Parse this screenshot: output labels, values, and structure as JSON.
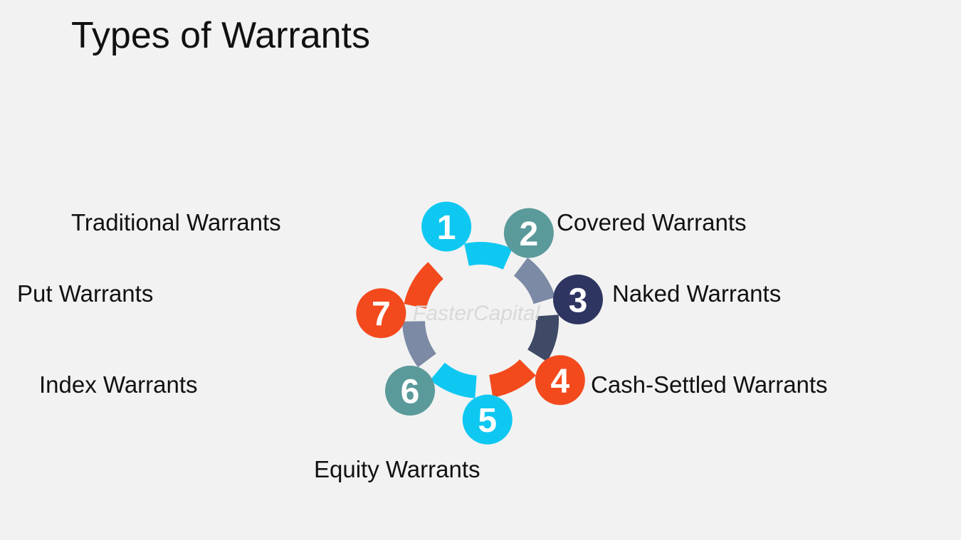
{
  "title": "Types of Warrants",
  "watermark": "FasterCapital",
  "items": [
    {
      "number": "1",
      "label": "Traditional Warrants",
      "color": "#0fc8f2"
    },
    {
      "number": "2",
      "label": "Covered Warrants",
      "color": "#5b9a9a"
    },
    {
      "number": "3",
      "label": "Naked Warrants",
      "color": "#2e3561"
    },
    {
      "number": "4",
      "label": "Cash-Settled Warrants",
      "color": "#f34a1d"
    },
    {
      "number": "5",
      "label": "Equity Warrants",
      "color": "#0fc8f2"
    },
    {
      "number": "6",
      "label": "Index Warrants",
      "color": "#5b9a9a"
    },
    {
      "number": "7",
      "label": "Put Warrants",
      "color": "#f34a1d"
    }
  ],
  "arc_colors": [
    "#0fc8f2",
    "#7d8aa5",
    "#3f4a66",
    "#f34a1d",
    "#0fc8f2",
    "#7d8aa5",
    "#f34a1d"
  ]
}
